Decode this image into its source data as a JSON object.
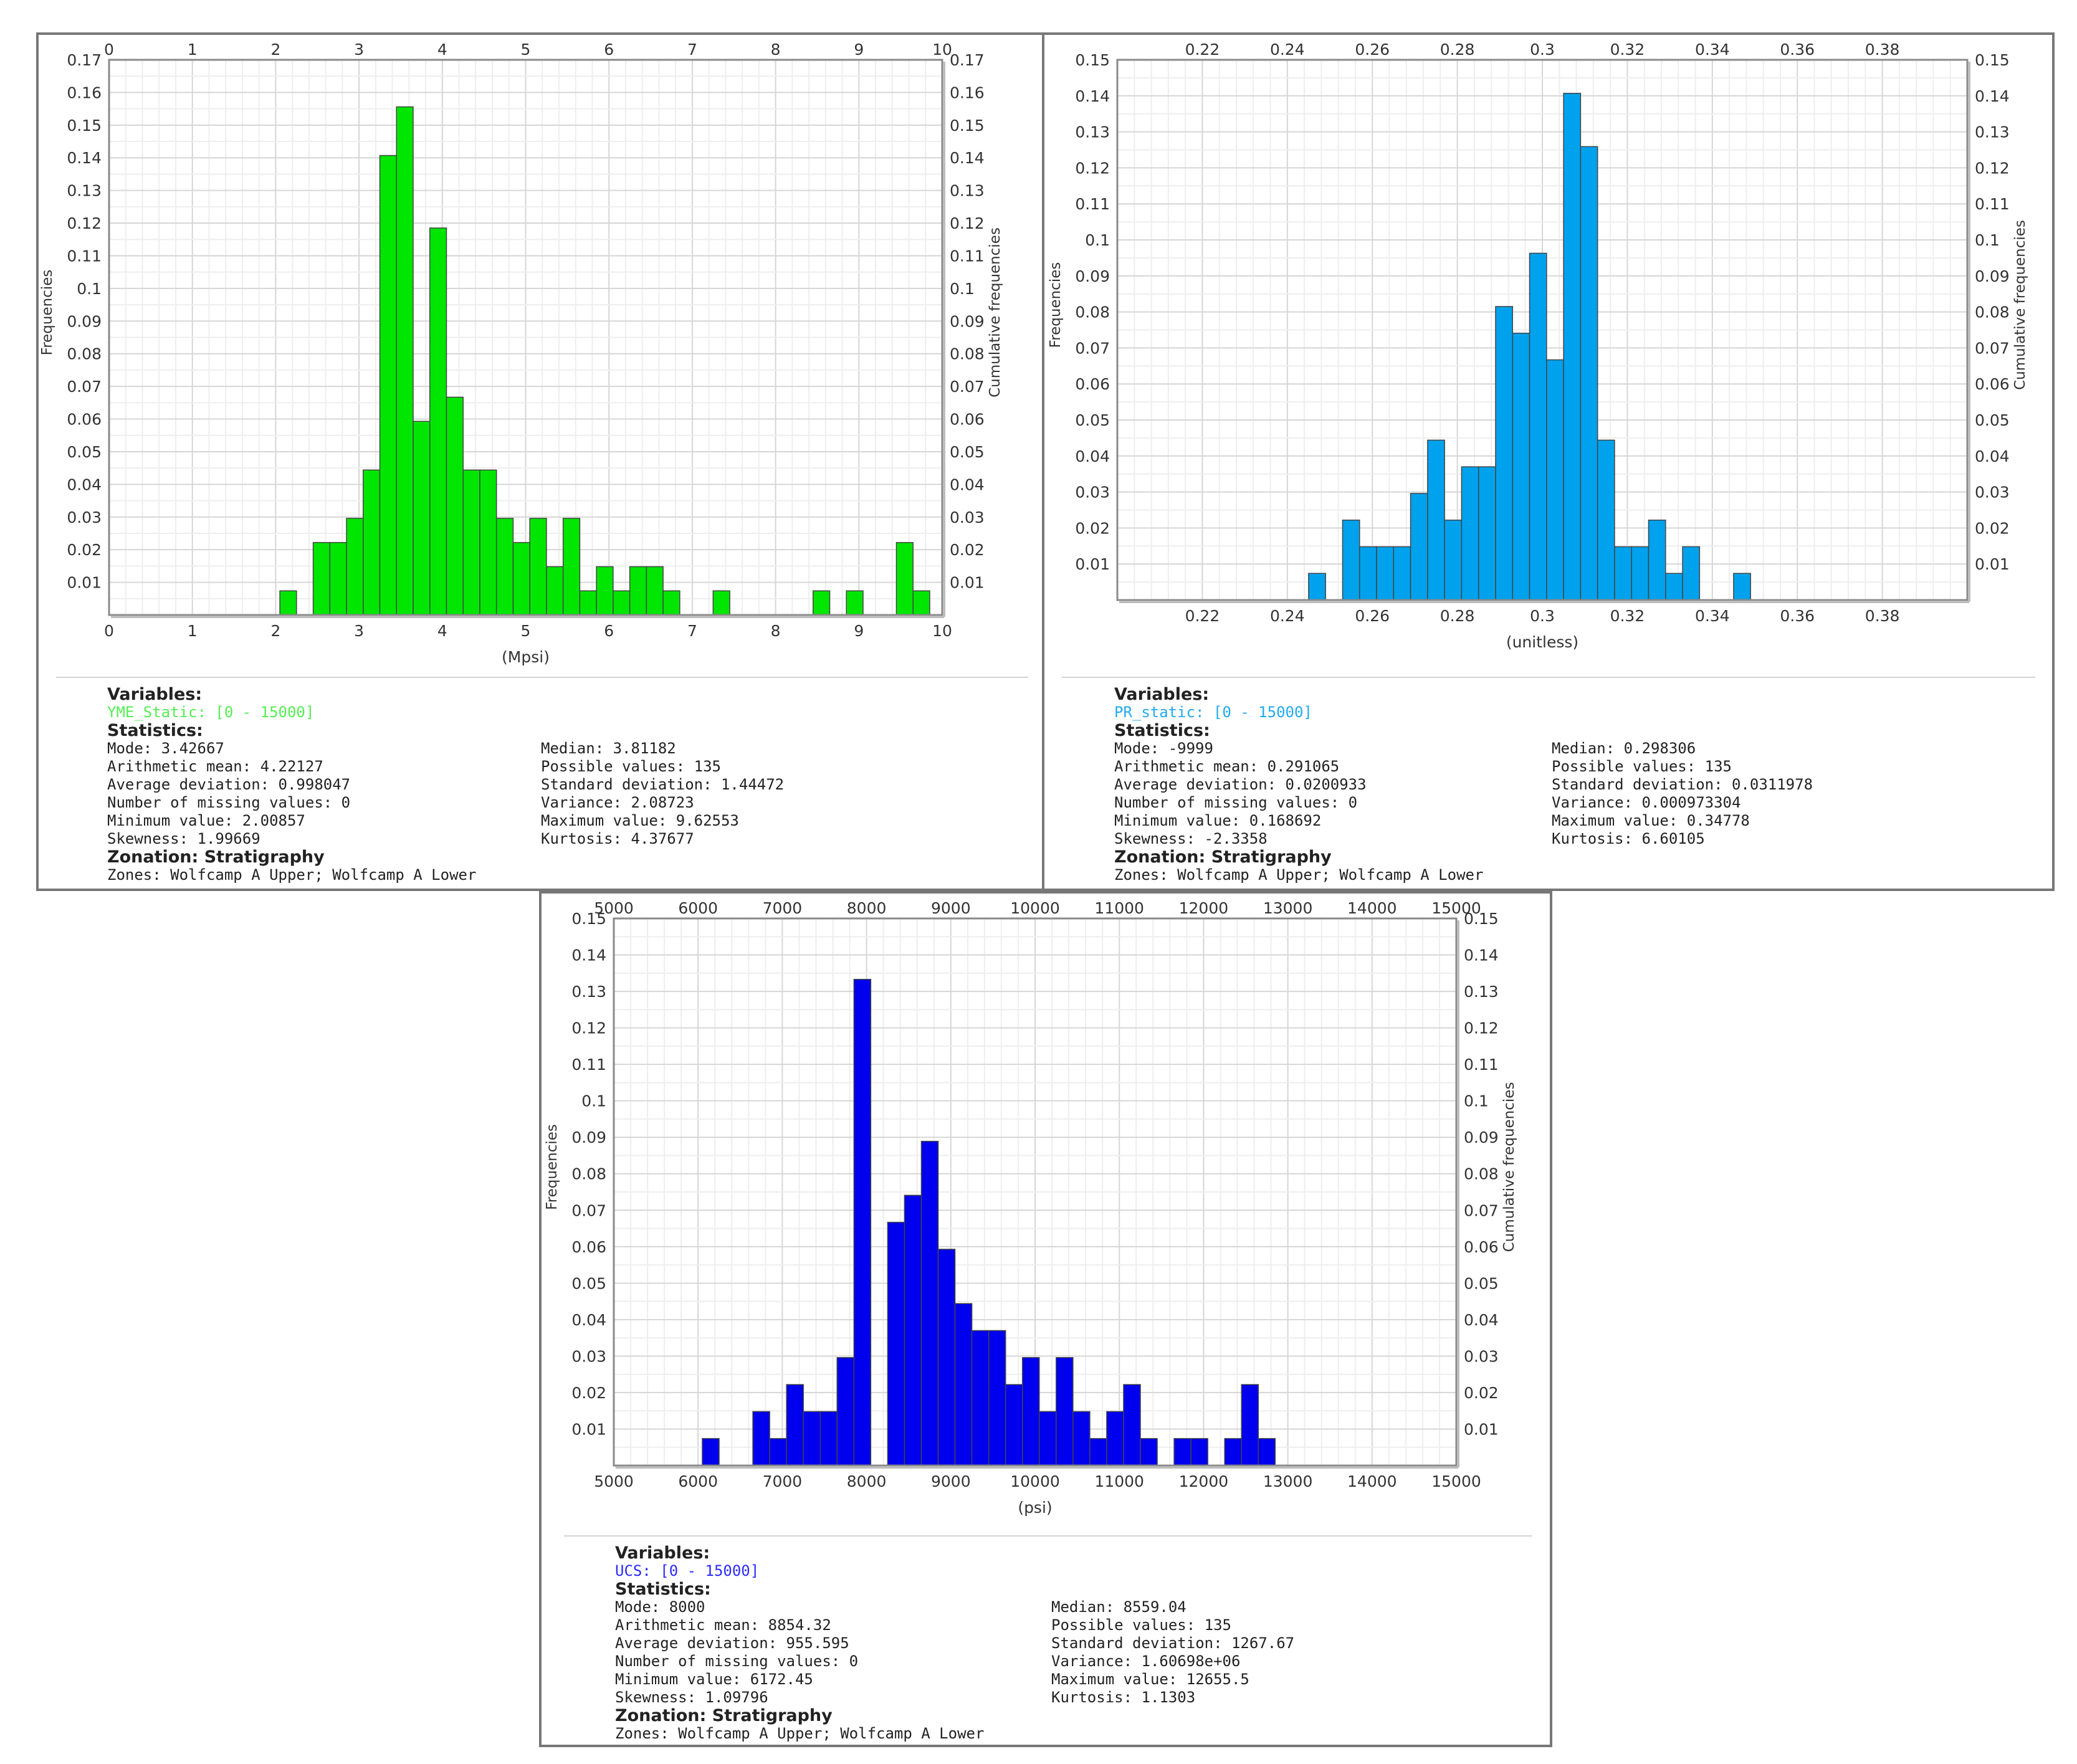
{
  "panels": [
    {
      "id": "yme",
      "chart_data": {
        "type": "bar",
        "ylabel": "Frequencies",
        "ylabel_right": "Cumulative frequencies",
        "xlabel": "(Mpsi)",
        "xlim": [
          0,
          10
        ],
        "ylim": [
          0,
          0.17
        ],
        "x_ticks": [
          "0",
          "1",
          "2",
          "3",
          "4",
          "5",
          "6",
          "7",
          "8",
          "9",
          "10"
        ],
        "y_ticks": [
          "0.01",
          "0.02",
          "0.03",
          "0.04",
          "0.05",
          "0.06",
          "0.07",
          "0.08",
          "0.09",
          "0.1",
          "0.11",
          "0.12",
          "0.13",
          "0.14",
          "0.15",
          "0.16",
          "0.17"
        ],
        "bin_width": 0.2,
        "bin_starts": [
          2.05,
          2.45,
          2.65,
          2.85,
          3.05,
          3.25,
          3.45,
          3.65,
          3.85,
          4.05,
          4.25,
          4.45,
          4.65,
          4.85,
          5.05,
          5.25,
          5.45,
          5.65,
          5.85,
          6.05,
          6.25,
          6.45,
          6.65,
          7.25,
          8.45,
          8.85,
          9.45,
          9.65
        ],
        "values": [
          0.0074,
          0.0222,
          0.0222,
          0.0296,
          0.0444,
          0.1407,
          0.1556,
          0.0593,
          0.1185,
          0.0667,
          0.0444,
          0.0444,
          0.0296,
          0.0222,
          0.0296,
          0.0148,
          0.0296,
          0.0074,
          0.0148,
          0.0074,
          0.0148,
          0.0148,
          0.0074,
          0.0074,
          0.0074,
          0.0074,
          0.0222,
          0.0074
        ],
        "color": "#00e600"
      },
      "variables_header": "Variables:",
      "variable": "YME_Static: [0 - 15000]",
      "variable_color": "#55ee55",
      "statistics_header": "Statistics:",
      "stats_left": [
        "Mode: 3.42667",
        "Arithmetic mean: 4.22127",
        "Average deviation: 0.998047",
        "Number of missing values: 0",
        "Minimum value: 2.00857",
        "Skewness: 1.99669"
      ],
      "stats_right": [
        "Median: 3.81182",
        "Possible values: 135",
        "Standard deviation: 1.44472",
        "Variance: 2.08723",
        "Maximum value: 9.62553",
        "Kurtosis: 4.37677"
      ],
      "zonation_header": "Zonation: Stratigraphy",
      "zones": "Zones: Wolfcamp A Upper; Wolfcamp A Lower"
    },
    {
      "id": "pr",
      "chart_data": {
        "type": "bar",
        "ylabel": "Frequencies",
        "ylabel_right": "Cumulative frequencies",
        "xlabel": "(unitless)",
        "xlim": [
          0.2,
          0.4
        ],
        "ylim": [
          0,
          0.15
        ],
        "x_ticks": [
          "0.22",
          "0.24",
          "0.26",
          "0.28",
          "0.3",
          "0.32",
          "0.34",
          "0.36",
          "0.38"
        ],
        "y_ticks": [
          "0.01",
          "0.02",
          "0.03",
          "0.04",
          "0.05",
          "0.06",
          "0.07",
          "0.08",
          "0.09",
          "0.1",
          "0.11",
          "0.12",
          "0.13",
          "0.14",
          "0.15"
        ],
        "bin_width": 0.004,
        "bin_starts": [
          0.245,
          0.253,
          0.257,
          0.261,
          0.265,
          0.269,
          0.273,
          0.277,
          0.281,
          0.285,
          0.289,
          0.293,
          0.297,
          0.301,
          0.305,
          0.309,
          0.313,
          0.317,
          0.321,
          0.325,
          0.329,
          0.333,
          0.345
        ],
        "values": [
          0.0074,
          0.0222,
          0.0148,
          0.0148,
          0.0148,
          0.0296,
          0.0444,
          0.0222,
          0.037,
          0.037,
          0.0815,
          0.0741,
          0.0963,
          0.0667,
          0.1407,
          0.1259,
          0.0444,
          0.0148,
          0.0148,
          0.0222,
          0.0074,
          0.0148,
          0.0074
        ],
        "color": "#00a2ed"
      },
      "variables_header": "Variables:",
      "variable": "PR_static: [0 - 15000]",
      "variable_color": "#22aaee",
      "statistics_header": "Statistics:",
      "stats_left": [
        "Mode: -9999",
        "Arithmetic mean: 0.291065",
        "Average deviation: 0.0200933",
        "Number of missing values: 0",
        "Minimum value: 0.168692",
        "Skewness: -2.3358"
      ],
      "stats_right": [
        "Median: 0.298306",
        "Possible values: 135",
        "Standard deviation: 0.0311978",
        "Variance: 0.000973304",
        "Maximum value: 0.34778",
        "Kurtosis: 6.60105"
      ],
      "zonation_header": "Zonation: Stratigraphy",
      "zones": "Zones: Wolfcamp A Upper; Wolfcamp A Lower"
    },
    {
      "id": "ucs",
      "chart_data": {
        "type": "bar",
        "ylabel": "Frequencies",
        "ylabel_right": "Cumulative frequencies",
        "xlabel": "(psi)",
        "xlim": [
          5000,
          15000
        ],
        "ylim": [
          0,
          0.15
        ],
        "x_ticks": [
          "5000",
          "6000",
          "7000",
          "8000",
          "9000",
          "10000",
          "11000",
          "12000",
          "13000",
          "14000",
          "15000"
        ],
        "y_ticks": [
          "0.01",
          "0.02",
          "0.03",
          "0.04",
          "0.05",
          "0.06",
          "0.07",
          "0.08",
          "0.09",
          "0.1",
          "0.11",
          "0.12",
          "0.13",
          "0.14",
          "0.15"
        ],
        "bin_width": 200,
        "bin_starts": [
          6050,
          6650,
          6850,
          7050,
          7250,
          7450,
          7650,
          7850,
          8250,
          8450,
          8650,
          8850,
          9050,
          9250,
          9450,
          9650,
          9850,
          10050,
          10250,
          10450,
          10650,
          10850,
          11050,
          11250,
          11650,
          11850,
          12250,
          12450,
          12650
        ],
        "values": [
          0.0074,
          0.0148,
          0.0074,
          0.0222,
          0.0148,
          0.0148,
          0.0296,
          0.1333,
          0.0667,
          0.0741,
          0.0889,
          0.0593,
          0.0444,
          0.037,
          0.037,
          0.0222,
          0.0296,
          0.0148,
          0.0296,
          0.0148,
          0.0074,
          0.0148,
          0.0222,
          0.0074,
          0.0074,
          0.0074,
          0.0074,
          0.0222,
          0.0074
        ],
        "color": "#0000ee"
      },
      "variables_header": "Variables:",
      "variable": "UCS: [0 - 15000]",
      "variable_color": "#2b2bff",
      "statistics_header": "Statistics:",
      "stats_left": [
        "Mode: 8000",
        "Arithmetic mean: 8854.32",
        "Average deviation: 955.595",
        "Number of missing values: 0",
        "Minimum value: 6172.45",
        "Skewness: 1.09796"
      ],
      "stats_right": [
        "Median: 8559.04",
        "Possible values: 135",
        "Standard deviation: 1267.67",
        "Variance: 1.60698e+06",
        "Maximum value: 12655.5",
        "Kurtosis: 1.1303"
      ],
      "zonation_header": "Zonation: Stratigraphy",
      "zones": "Zones: Wolfcamp A Upper; Wolfcamp A Lower"
    }
  ]
}
